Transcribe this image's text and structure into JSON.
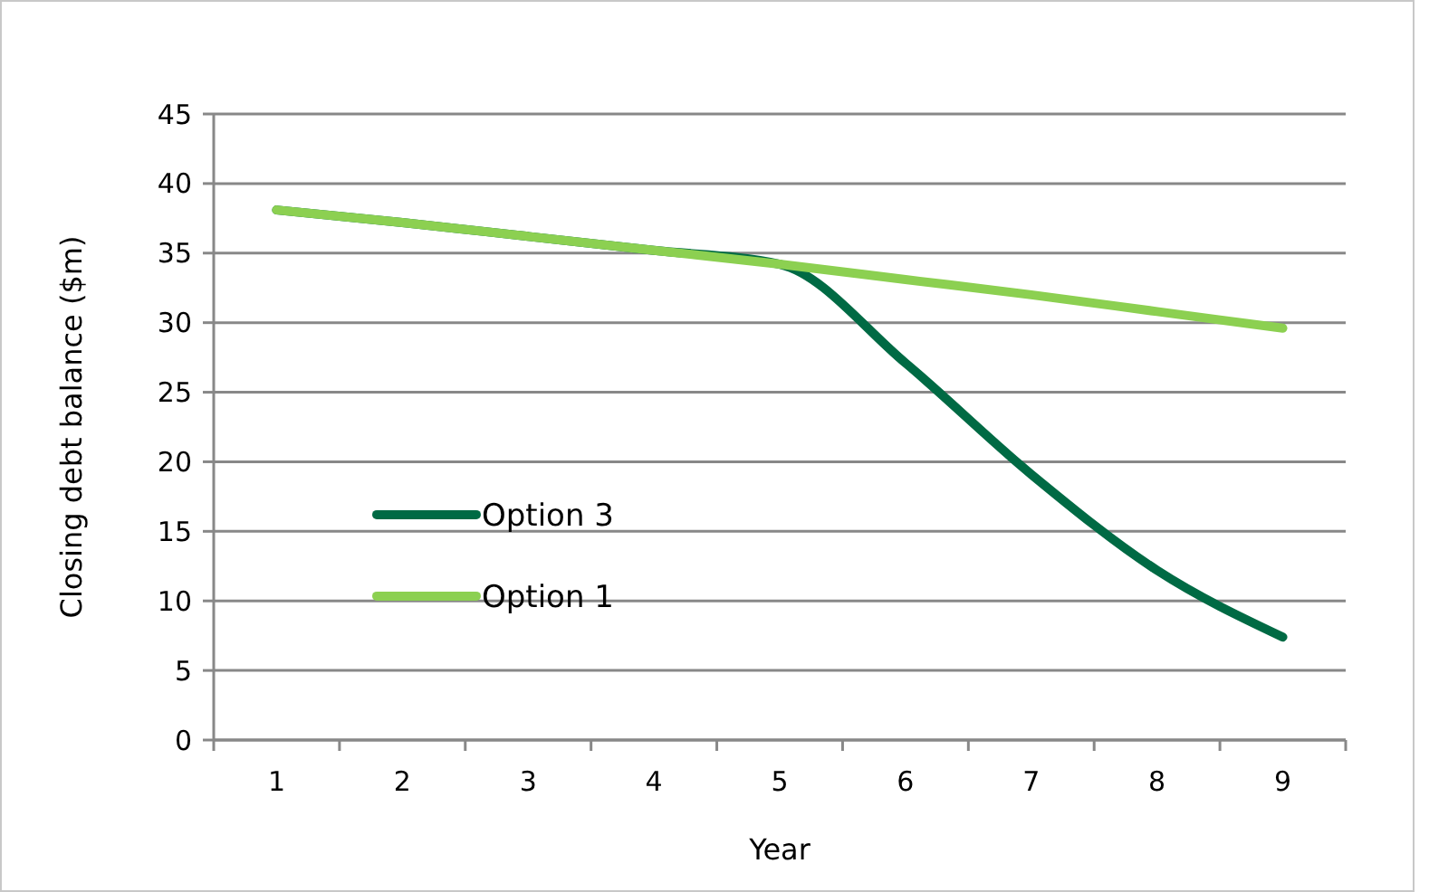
{
  "chart_data": {
    "type": "line",
    "xlabel": "Year",
    "ylabel": "Closing debt balance ($m)",
    "categories": [
      "1",
      "2",
      "3",
      "4",
      "5",
      "6",
      "7",
      "8",
      "9"
    ],
    "ylim": [
      0,
      45
    ],
    "yticks": [
      0,
      5,
      10,
      15,
      20,
      25,
      30,
      35,
      40,
      45
    ],
    "grid": "y",
    "legend": "left",
    "marker": "none",
    "line_style": "solid",
    "series": [
      {
        "name": "Option 3",
        "color": "#006a44",
        "values": [
          38.1,
          37.2,
          36.2,
          35.2,
          34.2,
          27.1,
          19.1,
          12.2,
          7.4
        ]
      },
      {
        "name": "Option 1",
        "color": "#8cd051",
        "values": [
          38.1,
          37.2,
          36.2,
          35.2,
          34.2,
          33.1,
          32.0,
          30.8,
          29.6
        ]
      }
    ]
  }
}
